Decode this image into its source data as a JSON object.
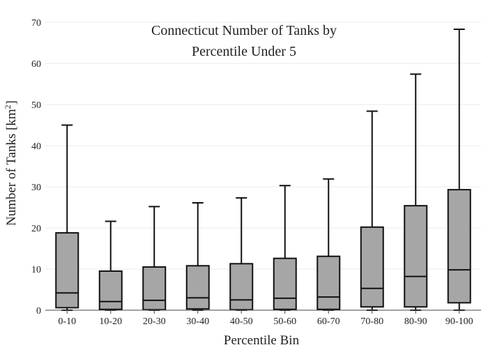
{
  "chart_data": {
    "type": "box",
    "title_lines": [
      "Connecticut Number of Tanks by",
      "Percentile Under 5"
    ],
    "xlabel": "Percentile Bin",
    "ylabel_prefix": "Number of Tanks  [km",
    "ylabel_sup": "2",
    "ylabel_suffix": "]",
    "ylim": [
      0,
      70
    ],
    "yticks": [
      0,
      10,
      20,
      30,
      40,
      50,
      60,
      70
    ],
    "grid": true,
    "box_color": "#a6a6a6",
    "line_color": "#111111",
    "categories": [
      "0-10",
      "10-20",
      "20-30",
      "30-40",
      "40-50",
      "50-60",
      "60-70",
      "70-80",
      "80-90",
      "90-100"
    ],
    "boxes": [
      {
        "min": 0,
        "q1": 0.6,
        "median": 4.2,
        "q3": 18.8,
        "max": 45.0
      },
      {
        "min": 0,
        "q1": 0.2,
        "median": 2.1,
        "q3": 9.5,
        "max": 21.6
      },
      {
        "min": 0,
        "q1": 0.1,
        "median": 2.4,
        "q3": 10.5,
        "max": 25.2
      },
      {
        "min": 0,
        "q1": 0.3,
        "median": 3.0,
        "q3": 10.8,
        "max": 26.1
      },
      {
        "min": 0,
        "q1": 0.1,
        "median": 2.5,
        "q3": 11.3,
        "max": 27.3
      },
      {
        "min": 0,
        "q1": 0.2,
        "median": 2.9,
        "q3": 12.6,
        "max": 30.3
      },
      {
        "min": 0,
        "q1": 0.2,
        "median": 3.2,
        "q3": 13.1,
        "max": 31.9
      },
      {
        "min": 0,
        "q1": 0.8,
        "median": 5.3,
        "q3": 20.2,
        "max": 48.4
      },
      {
        "min": 0,
        "q1": 0.8,
        "median": 8.2,
        "q3": 25.4,
        "max": 57.4
      },
      {
        "min": 0,
        "q1": 1.8,
        "median": 9.8,
        "q3": 29.3,
        "max": 68.3
      }
    ]
  }
}
